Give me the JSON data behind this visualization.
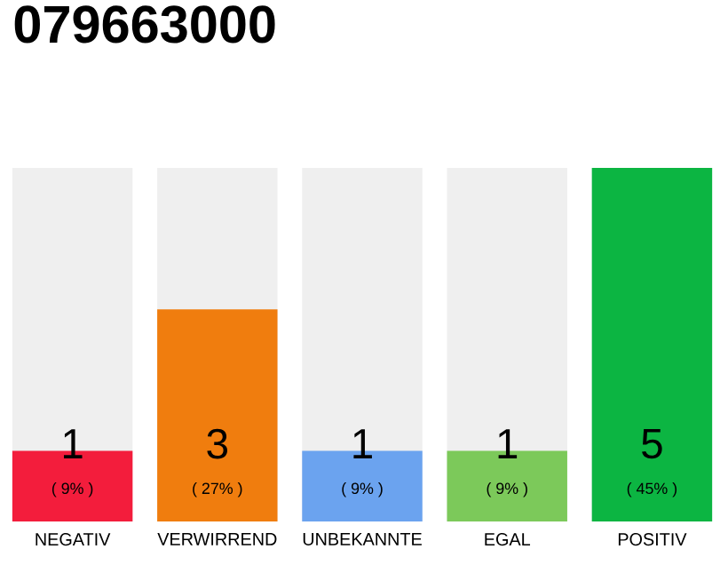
{
  "chart_data": {
    "type": "bar",
    "title": "079663000",
    "categories": [
      "NEGATIV",
      "VERWIRREND",
      "UNBEKANNTE",
      "EGAL",
      "POSITIV"
    ],
    "values": [
      9,
      27,
      9,
      9,
      45
    ],
    "colors": [
      "#f31d3c",
      "#f07d0e",
      "#6ba3ef",
      "#7cc95a",
      "#0cb542"
    ],
    "value_labels": [
      "( 9% )",
      "( 27% )",
      "( 9% )",
      "( 9% )",
      "( 45% )"
    ],
    "annotations": [
      "1",
      "3",
      "1",
      "1",
      "5"
    ],
    "tick_labels": "x"
  }
}
